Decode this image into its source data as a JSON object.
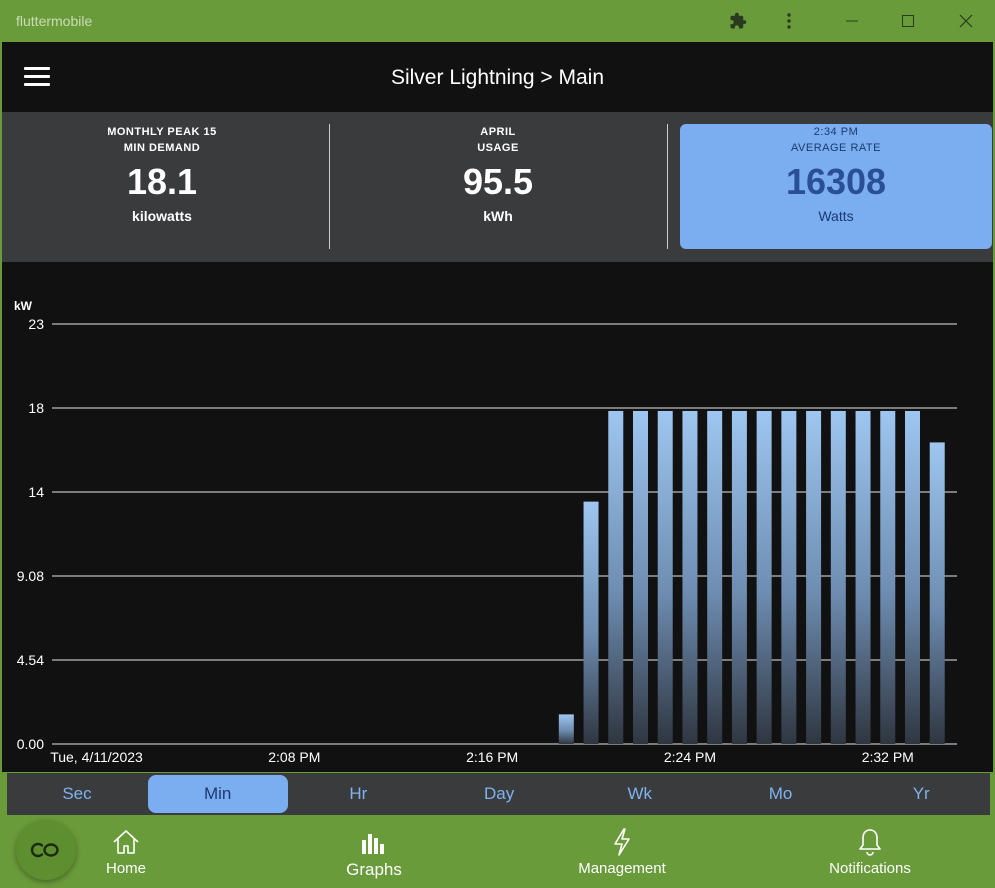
{
  "window": {
    "title": "fluttermobile"
  },
  "appbar": {
    "title": "Silver Lightning > Main"
  },
  "summary": {
    "peak": {
      "caption_line1": "MONTHLY PEAK 15",
      "caption_line2": "MIN DEMAND",
      "value": "18.1",
      "unit": "kilowatts"
    },
    "usage": {
      "caption_line1": "APRIL",
      "caption_line2": "USAGE",
      "value": "95.5",
      "unit": "kWh"
    },
    "rate": {
      "caption_line1": "2:34 PM",
      "caption_line2": "AVERAGE RATE",
      "value": "16308",
      "unit": "Watts"
    }
  },
  "colors": {
    "accent": "#7aaef0",
    "window_green": "#6a9b3a",
    "background": "#111111",
    "panel": "#3a3b3d"
  },
  "chart_data": {
    "type": "bar",
    "ylabel": "kW",
    "y_ticks": [
      "23",
      "18",
      "14",
      "9.08",
      "4.54",
      "0.00"
    ],
    "y_tick_values": [
      22.7,
      18.16,
      13.62,
      9.08,
      4.54,
      0
    ],
    "ylim": [
      0,
      22.7
    ],
    "x_tick_labels": [
      "Tue, 4/11/2023",
      "2:08 PM",
      "2:16 PM",
      "2:24 PM",
      "2:32 PM"
    ],
    "x_tick_minutes": [
      0,
      8,
      16,
      24,
      32
    ],
    "x_range_minutes": [
      -1.8,
      34.8
    ],
    "series": [
      {
        "minutes": [
          19,
          20,
          21,
          22,
          23,
          24,
          25,
          26,
          27,
          28,
          29,
          30,
          31,
          32,
          33,
          34
        ],
        "values": [
          1.6,
          13.1,
          18.0,
          18.0,
          18.0,
          18.0,
          18.0,
          18.0,
          18.0,
          18.0,
          18.0,
          18.0,
          18.0,
          18.0,
          18.0,
          16.3
        ]
      }
    ],
    "grid": true
  },
  "range_tabs": {
    "items": [
      "Sec",
      "Min",
      "Hr",
      "Day",
      "Wk",
      "Mo",
      "Yr"
    ],
    "selected": "Min"
  },
  "nav": {
    "items": [
      {
        "label": "Home",
        "icon": "home-icon"
      },
      {
        "label": "Graphs",
        "icon": "bar-chart-icon"
      },
      {
        "label": "Management",
        "icon": "lightning-icon"
      },
      {
        "label": "Notifications",
        "icon": "bell-icon"
      }
    ],
    "selected": "Graphs"
  }
}
